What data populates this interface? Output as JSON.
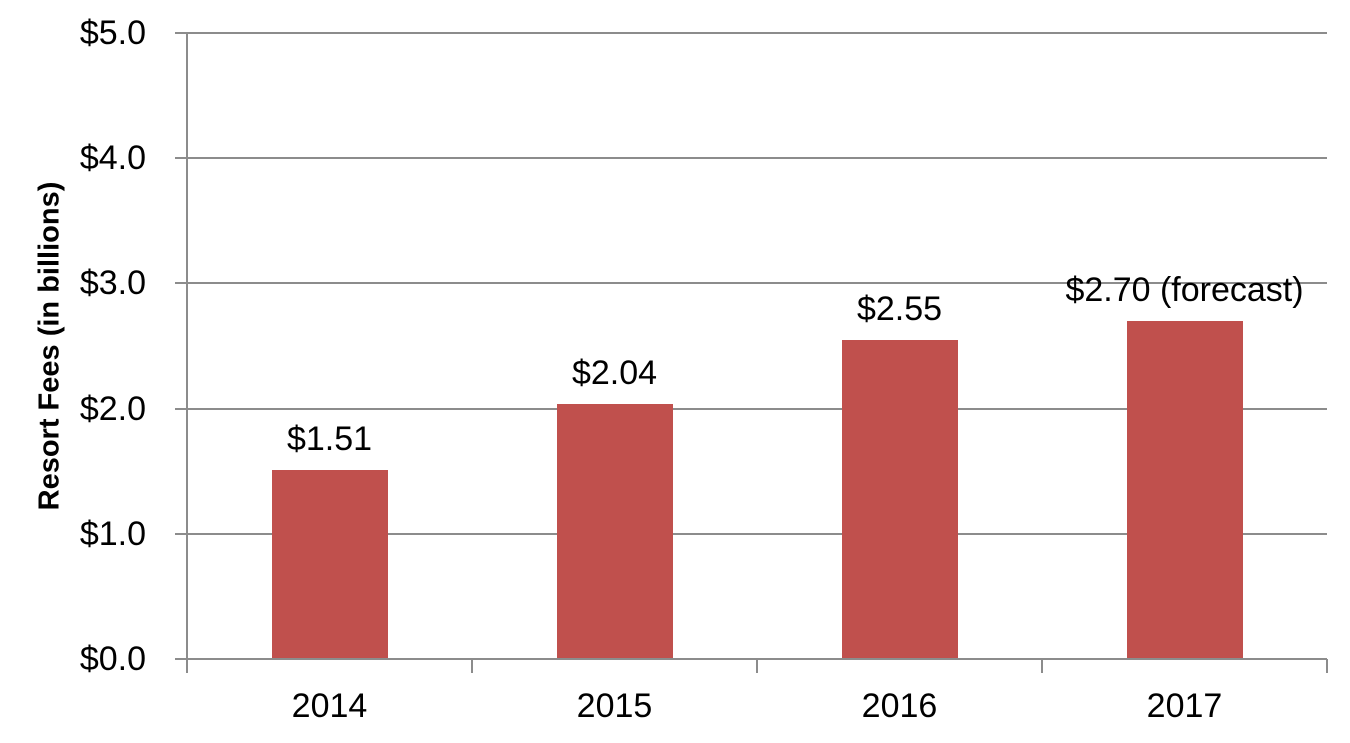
{
  "chart_data": {
    "type": "bar",
    "title": "",
    "categories": [
      "2014",
      "2015",
      "2016",
      "2017"
    ],
    "values": [
      1.51,
      2.04,
      2.55,
      2.7
    ],
    "bar_labels": [
      "$1.51",
      "$2.04",
      "$2.55",
      "$2.70 (forecast)"
    ],
    "xlabel": "",
    "ylabel": "Resort Fees (in billions)",
    "ylim": [
      0,
      5
    ],
    "ytick_interval": 1.0,
    "yticks": [
      0,
      1,
      2,
      3,
      4,
      5
    ],
    "ytick_labels": [
      "$0.0",
      "$1.0",
      "$2.0",
      "$3.0",
      "$4.0",
      "$5.0"
    ],
    "grid": "horizontal-major",
    "legend": "none",
    "colors": {
      "bar": "#C0504D",
      "gridline": "#8C8C8C",
      "axis": "#8C8C8C",
      "text": "#000000",
      "background": "#FFFFFF"
    }
  }
}
